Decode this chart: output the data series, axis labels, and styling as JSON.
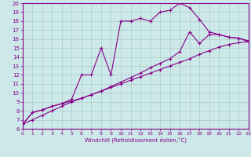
{
  "xlabel": "Windchill (Refroidissement éolien,°C)",
  "bg_color": "#cce8e8",
  "line_color": "#880088",
  "xmin": 0,
  "xmax": 23,
  "ymin": 6,
  "ymax": 20,
  "xticks": [
    0,
    1,
    2,
    3,
    4,
    5,
    6,
    7,
    8,
    9,
    10,
    11,
    12,
    13,
    14,
    15,
    16,
    17,
    18,
    19,
    20,
    21,
    22,
    23
  ],
  "yticks": [
    6,
    7,
    8,
    9,
    10,
    11,
    12,
    13,
    14,
    15,
    16,
    17,
    18,
    19,
    20
  ],
  "line1_x": [
    0,
    1,
    2,
    3,
    4,
    5,
    6,
    7,
    8,
    9,
    10,
    11,
    12,
    13,
    14,
    15,
    16,
    17,
    18,
    19,
    20,
    21,
    22,
    23
  ],
  "line1_y": [
    6.5,
    7.0,
    7.5,
    8.0,
    8.5,
    9.0,
    9.4,
    9.8,
    10.2,
    10.6,
    11.0,
    11.4,
    11.8,
    12.2,
    12.6,
    13.0,
    13.4,
    13.8,
    14.3,
    14.7,
    15.1,
    15.4,
    15.6,
    15.7
  ],
  "line2_x": [
    0,
    1,
    2,
    3,
    4,
    5,
    6,
    7,
    8,
    9,
    10,
    11,
    12,
    13,
    14,
    15,
    16,
    17,
    18,
    19,
    20,
    21,
    22,
    23
  ],
  "line2_y": [
    6.5,
    7.8,
    8.1,
    8.5,
    8.8,
    9.1,
    9.4,
    9.8,
    10.2,
    10.7,
    11.2,
    11.7,
    12.2,
    12.8,
    13.3,
    13.8,
    14.6,
    16.8,
    15.5,
    16.5,
    16.5,
    16.2,
    16.1,
    15.8
  ],
  "line3_x": [
    0,
    1,
    2,
    3,
    4,
    5,
    6,
    7,
    8,
    9,
    10,
    11,
    12,
    13,
    14,
    15,
    16,
    17,
    18,
    19,
    20,
    21,
    22,
    23
  ],
  "line3_y": [
    6.5,
    7.8,
    8.1,
    8.5,
    8.8,
    9.3,
    12.0,
    12.0,
    15.0,
    12.0,
    18.0,
    18.0,
    18.3,
    18.0,
    19.0,
    19.2,
    20.0,
    19.5,
    18.2,
    16.8,
    16.5,
    16.2,
    16.1,
    15.7
  ],
  "grid_color": "#aacccc",
  "marker": "+"
}
